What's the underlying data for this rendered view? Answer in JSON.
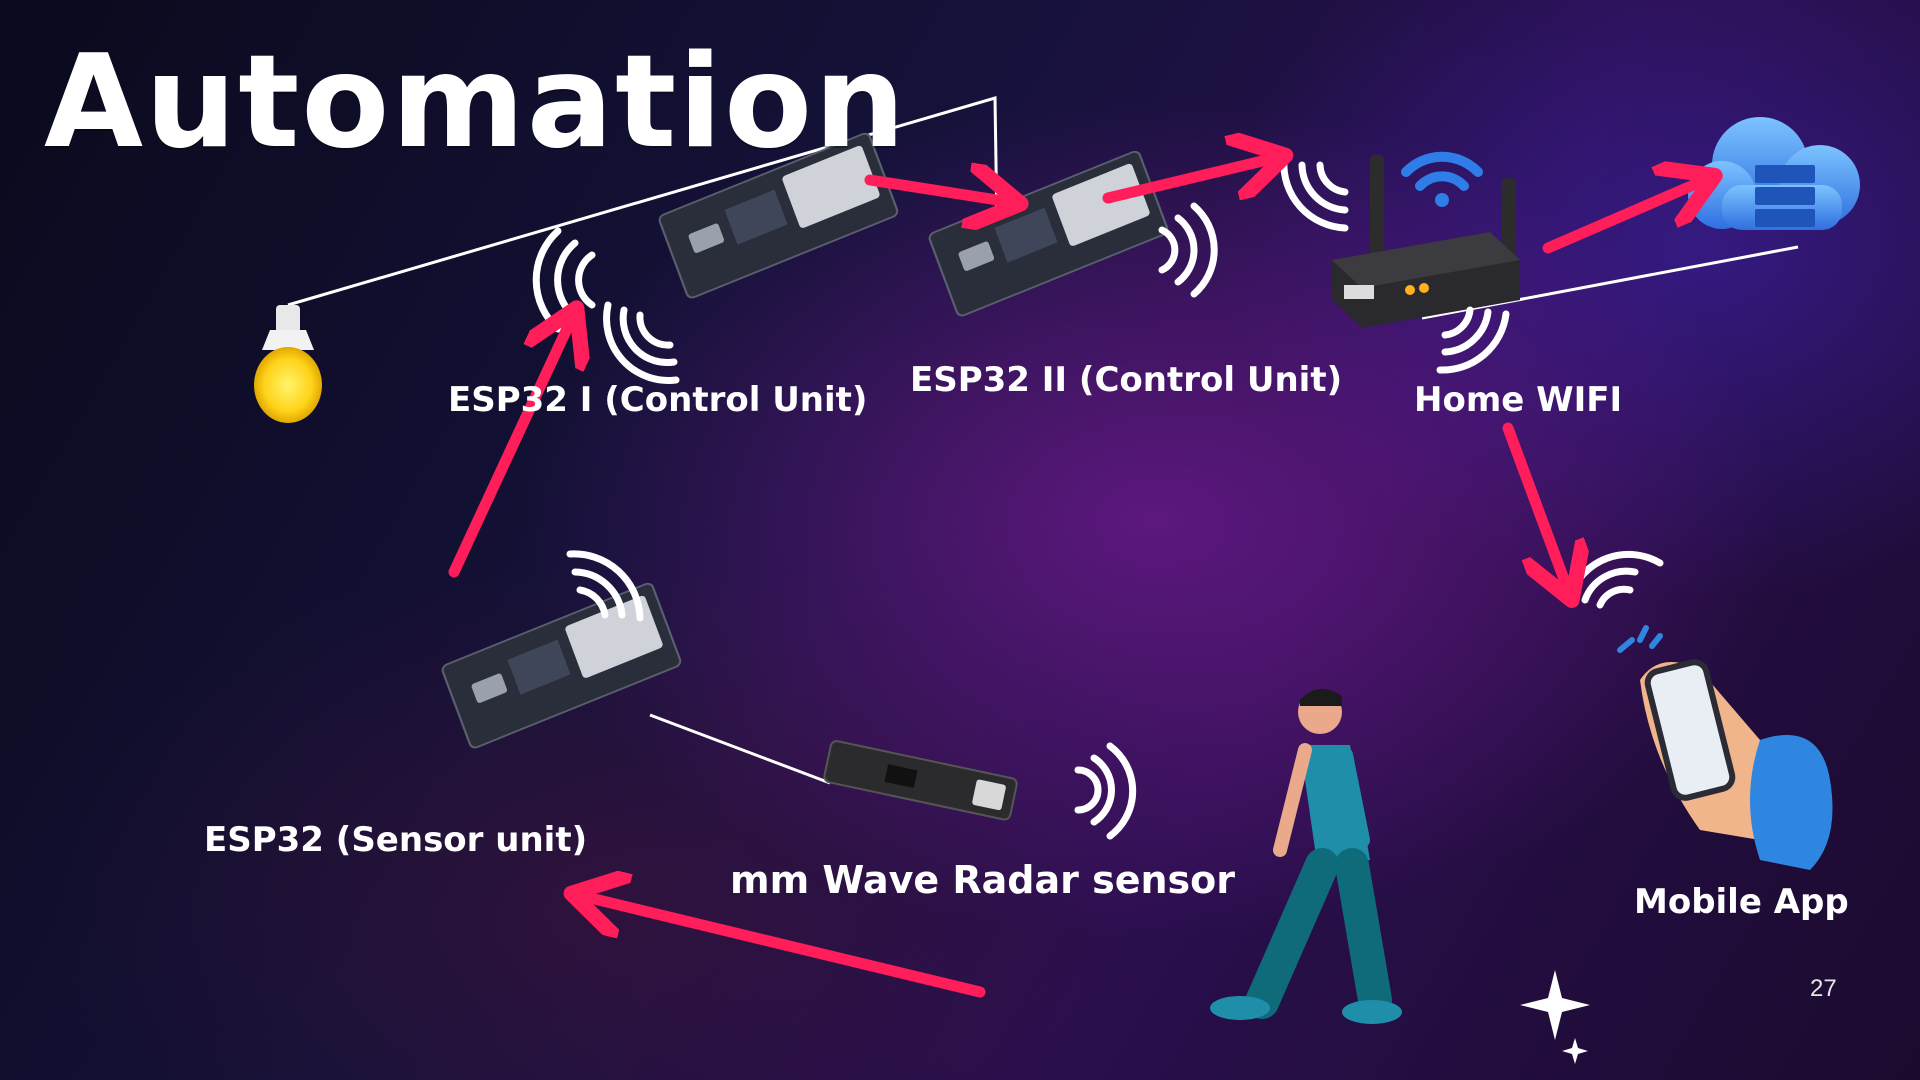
{
  "title": "Automation",
  "labels": {
    "esp32_one": "ESP32 I (Control Unit)",
    "esp32_two": "ESP32 II (Control Unit)",
    "home_wifi": "Home WIFI",
    "esp32_sensor": "ESP32 (Sensor unit)",
    "radar": "mm Wave Radar sensor",
    "mobile_app": "Mobile App"
  },
  "page_number": "27",
  "colors": {
    "arrow": "#ff1e5a",
    "bulb": "#ffd21a",
    "board": "#2a2d3a",
    "chip": "#cfd2d8",
    "cloud": "#3a8ff0",
    "person_shirt": "#1f8ea8",
    "person_pants": "#0f6a7a"
  },
  "icons": [
    "light-bulb-icon",
    "esp32-board-icon",
    "router-icon",
    "wifi-icon",
    "cloud-server-icon",
    "person-walking-icon",
    "phone-hand-icon",
    "radar-sensor-icon",
    "sparkle-icon"
  ]
}
